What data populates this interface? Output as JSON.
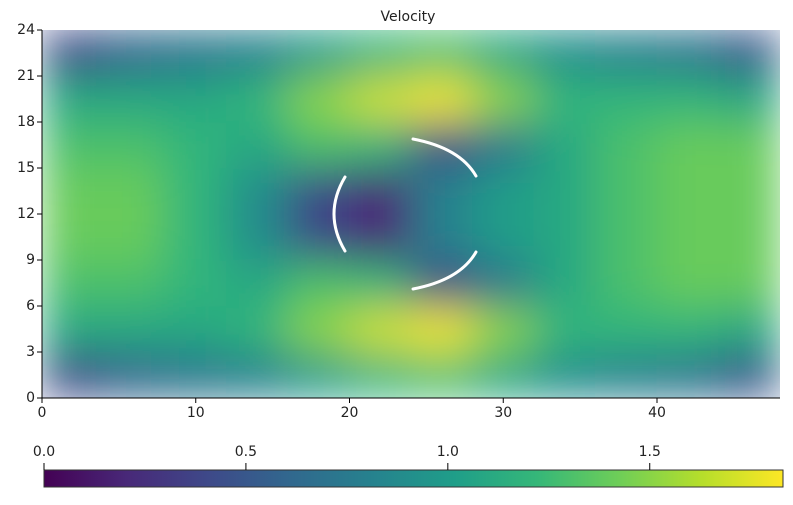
{
  "chart_data": {
    "type": "heatmap",
    "title": "Velocity",
    "xbins": [
      0,
      4,
      8,
      12,
      16,
      20,
      24,
      28,
      32,
      36,
      40,
      44,
      48
    ],
    "ybins": [
      0,
      3,
      6,
      9,
      12,
      15,
      18,
      21,
      24
    ],
    "z": [
      [
        0.4,
        0.6,
        0.7,
        0.8,
        1.0,
        1.2,
        1.3,
        1.1,
        0.9,
        0.8,
        0.7,
        0.5
      ],
      [
        1.1,
        1.1,
        1.1,
        1.2,
        1.5,
        1.7,
        1.8,
        1.5,
        1.2,
        1.2,
        1.2,
        1.1
      ],
      [
        1.3,
        1.3,
        1.2,
        1.1,
        1.3,
        1.2,
        0.4,
        0.7,
        1.1,
        1.3,
        1.4,
        1.4
      ],
      [
        1.4,
        1.4,
        1.2,
        0.9,
        0.4,
        0.2,
        0.8,
        1.0,
        1.1,
        1.3,
        1.4,
        1.4
      ],
      [
        1.4,
        1.4,
        1.2,
        0.9,
        0.4,
        0.2,
        0.8,
        1.0,
        1.1,
        1.3,
        1.4,
        1.4
      ],
      [
        1.3,
        1.3,
        1.2,
        1.1,
        1.3,
        1.2,
        0.4,
        0.7,
        1.1,
        1.3,
        1.4,
        1.4
      ],
      [
        1.1,
        1.1,
        1.1,
        1.2,
        1.5,
        1.7,
        1.8,
        1.5,
        1.2,
        1.2,
        1.2,
        1.1
      ],
      [
        0.4,
        0.6,
        0.7,
        0.8,
        1.0,
        1.2,
        1.3,
        1.1,
        0.9,
        0.8,
        0.7,
        0.5
      ]
    ],
    "xlim": [
      0,
      48
    ],
    "xticks": [
      0,
      10,
      20,
      30,
      40
    ],
    "ylim": [
      0,
      24
    ],
    "yticks": [
      0,
      3,
      6,
      9,
      12,
      15,
      18,
      21,
      24
    ],
    "zlim": [
      0,
      1.83
    ],
    "zticks": [
      {
        "value": 0,
        "label": "0.0"
      },
      {
        "value": 0.5,
        "label": "0.5"
      },
      {
        "value": 1,
        "label": "1.0"
      },
      {
        "value": 1.5,
        "label": "1.5"
      }
    ],
    "colorscale": [
      "#440154",
      "#482878",
      "#3e4989",
      "#31688e",
      "#26828e",
      "#1f9e89",
      "#35b779",
      "#6ece58",
      "#b5de2b",
      "#fde725"
    ]
  }
}
